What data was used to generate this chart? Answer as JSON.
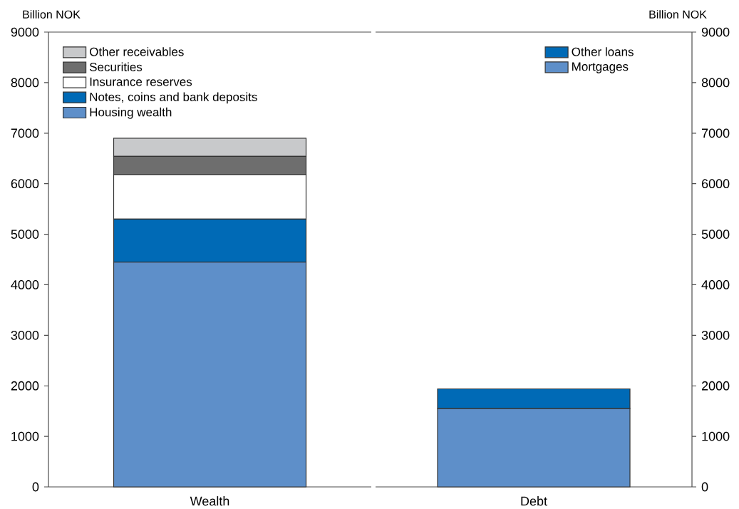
{
  "chart_data": [
    {
      "type": "bar",
      "stacked": true,
      "categories": [
        "Wealth"
      ],
      "ylabel": "Billion NOK",
      "ylim": [
        0,
        9000
      ],
      "yticks": [
        0,
        1000,
        2000,
        3000,
        4000,
        5000,
        6000,
        7000,
        8000,
        9000
      ],
      "legend": "top left",
      "series": [
        {
          "name": "Housing wealth",
          "color": "#5e8fc9",
          "values": [
            4450
          ]
        },
        {
          "name": "Notes, coins and bank deposits",
          "color": "#006ab6",
          "values": [
            850
          ]
        },
        {
          "name": "Insurance reserves",
          "color": "#ffffff",
          "values": [
            880
          ]
        },
        {
          "name": "Securities",
          "color": "#6e6e6e",
          "values": [
            360
          ]
        },
        {
          "name": "Other receivables",
          "color": "#c8c9cb",
          "values": [
            360
          ]
        }
      ]
    },
    {
      "type": "bar",
      "stacked": true,
      "categories": [
        "Debt"
      ],
      "ylabel": "Billion NOK",
      "ylim": [
        0,
        9000
      ],
      "yticks": [
        0,
        1000,
        2000,
        3000,
        4000,
        5000,
        6000,
        7000,
        8000,
        9000
      ],
      "legend": "top right",
      "series": [
        {
          "name": "Mortgages",
          "color": "#5e8fc9",
          "values": [
            1550
          ]
        },
        {
          "name": "Other loans",
          "color": "#006ab6",
          "values": [
            390
          ]
        }
      ]
    }
  ]
}
